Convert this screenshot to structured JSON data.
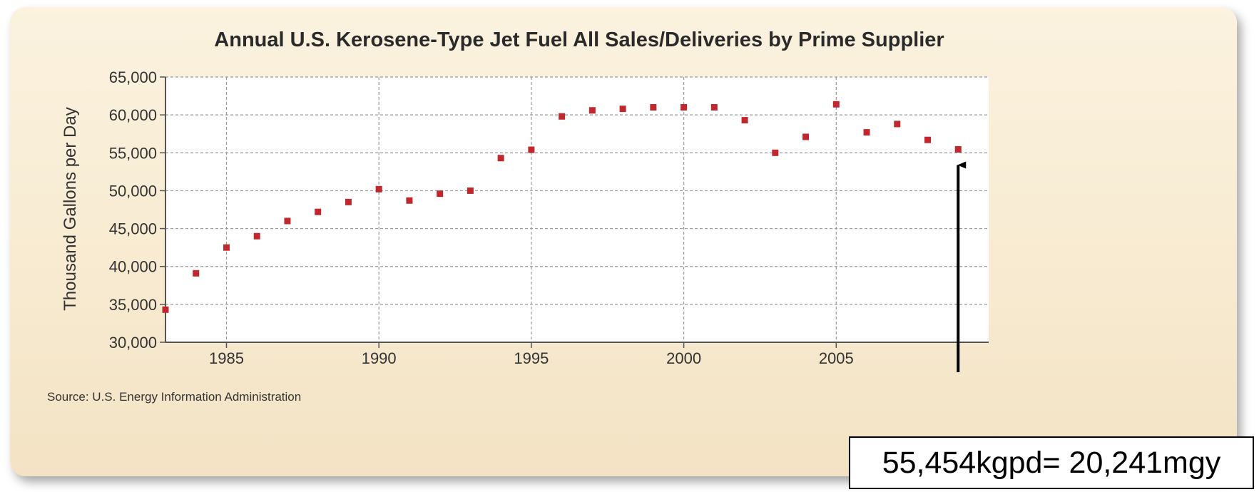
{
  "chart_data": {
    "type": "scatter",
    "title": "Annual U.S. Kerosene-Type Jet Fuel All Sales/Deliveries by Prime Supplier",
    "ylabel": "Thousand Gallons per Day",
    "xlabel": "",
    "x": [
      1983,
      1984,
      1985,
      1986,
      1987,
      1988,
      1989,
      1990,
      1991,
      1992,
      1993,
      1994,
      1995,
      1996,
      1997,
      1998,
      1999,
      2000,
      2001,
      2002,
      2003,
      2004,
      2005,
      2006,
      2007,
      2008,
      2009
    ],
    "y": [
      34300,
      39100,
      42500,
      44000,
      46000,
      47200,
      48500,
      50200,
      48700,
      49600,
      50000,
      54300,
      55400,
      59800,
      60600,
      60800,
      61000,
      61000,
      61000,
      59300,
      55000,
      57100,
      61400,
      57700,
      58800,
      56700,
      55454
    ],
    "xlim": [
      1983,
      2010
    ],
    "ylim": [
      30000,
      65000
    ],
    "x_ticks": [
      1985,
      1990,
      1995,
      2000,
      2005
    ],
    "x_tick_labels": [
      "1985",
      "1990",
      "1995",
      "2000",
      "2005"
    ],
    "y_ticks": [
      30000,
      35000,
      40000,
      45000,
      50000,
      55000,
      60000,
      65000
    ],
    "y_tick_labels": [
      "30,000",
      "35,000",
      "40,000",
      "45,000",
      "50,000",
      "55,000",
      "60,000",
      "65,000"
    ],
    "grid": true,
    "marker_color": "#c0282e",
    "source": "Source: U.S. Energy Information Administration",
    "annotation": {
      "text": "55,454kgpd= 20,241mgy",
      "target_x": 2009,
      "target_y": 55454
    }
  }
}
